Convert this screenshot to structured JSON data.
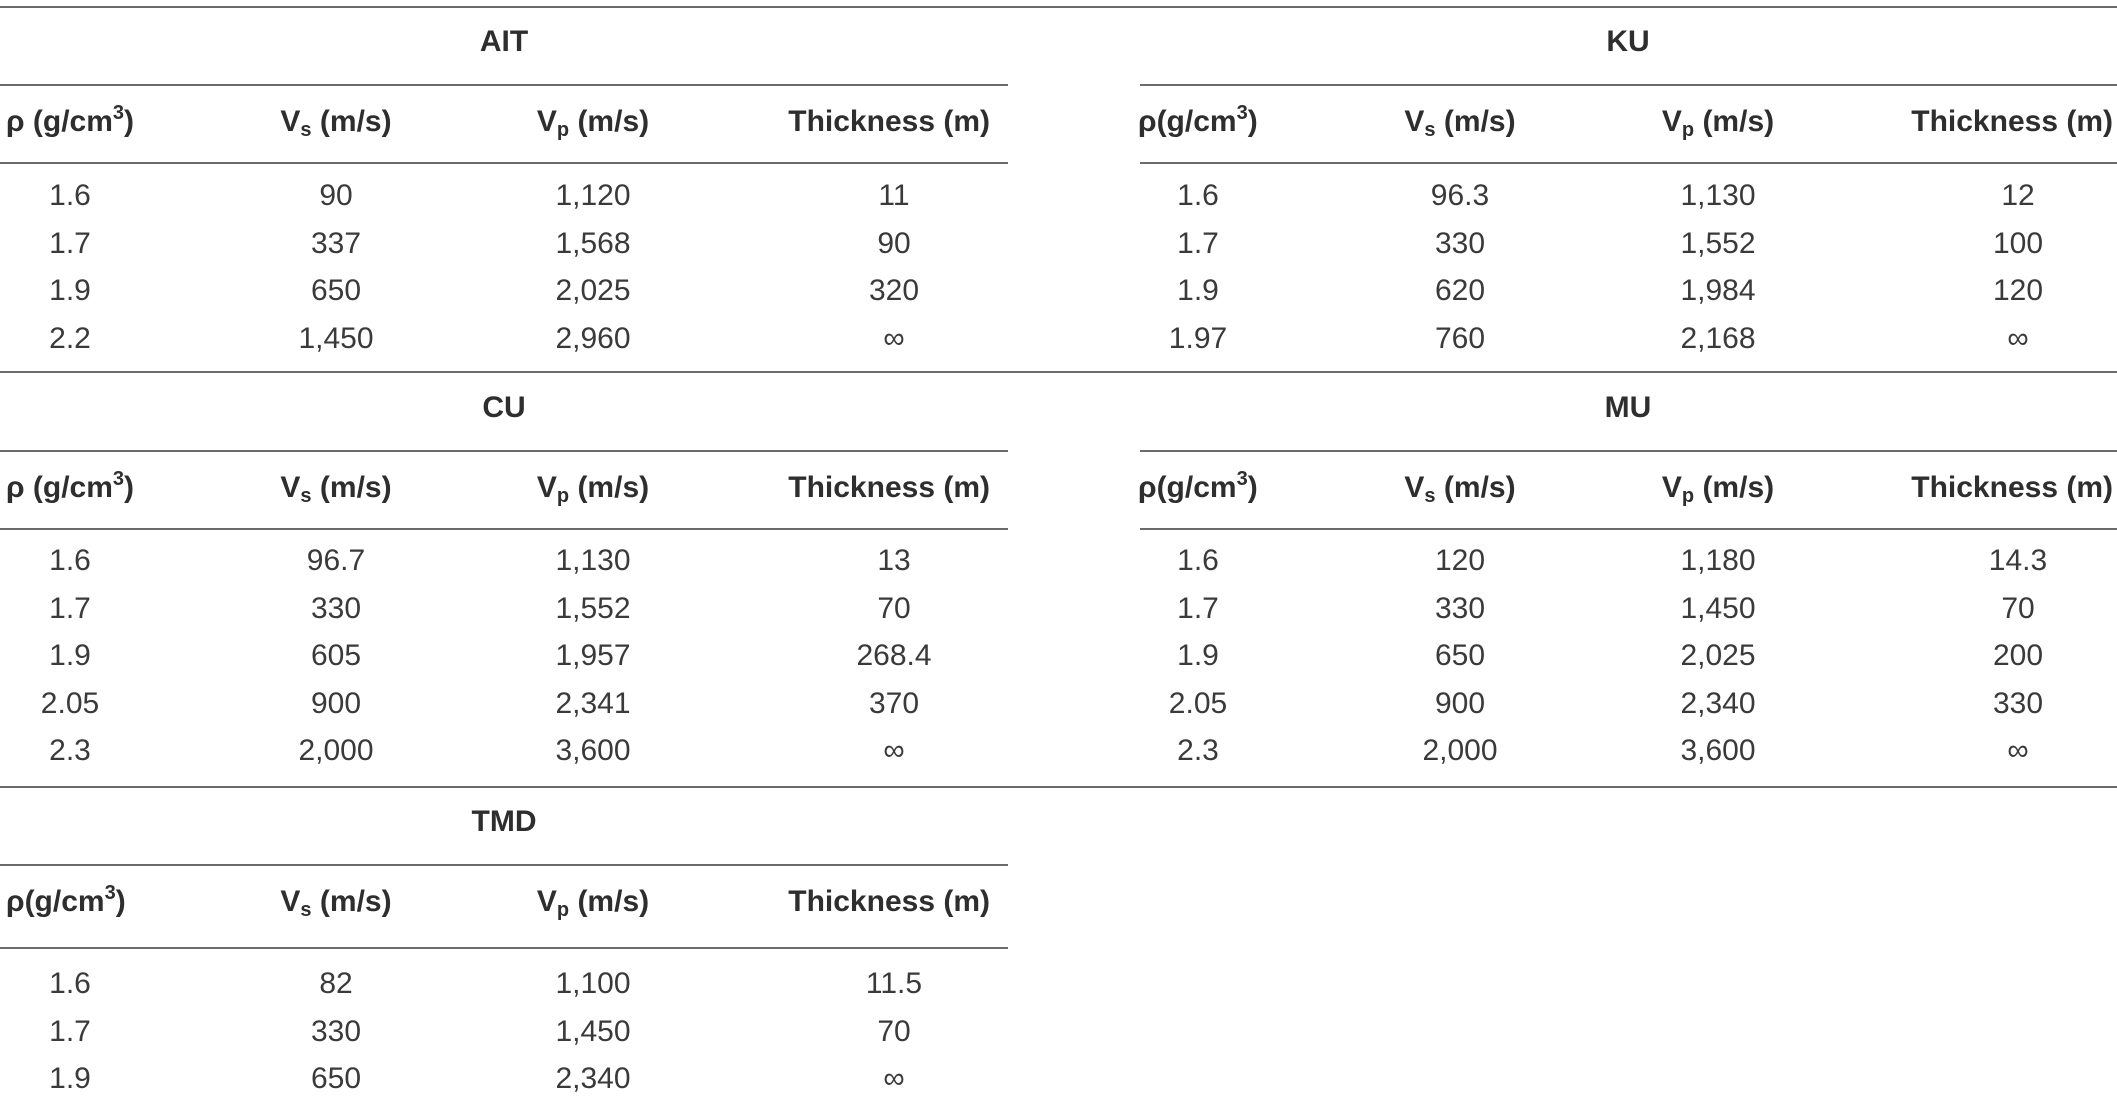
{
  "headers": {
    "rho_symbol": "ρ",
    "rho_unit_left": "(g/cm",
    "rho_exp": "3",
    "rho_unit_right": ")",
    "v": "V",
    "vs_sub": "s",
    "vp_sub": "p",
    "v_unit": "(m/s)",
    "thickness": "Thickness (m)"
  },
  "sections": [
    {
      "title": "AIT",
      "rows": [
        [
          "1.6",
          "90",
          "1,120",
          "11"
        ],
        [
          "1.7",
          "337",
          "1,568",
          "90"
        ],
        [
          "1.9",
          "650",
          "2,025",
          "320"
        ],
        [
          "2.2",
          "1,450",
          "2,960",
          "∞"
        ]
      ]
    },
    {
      "title": "KU",
      "rows": [
        [
          "1.6",
          "96.3",
          "1,130",
          "12"
        ],
        [
          "1.7",
          "330",
          "1,552",
          "100"
        ],
        [
          "1.9",
          "620",
          "1,984",
          "120"
        ],
        [
          "1.97",
          "760",
          "2,168",
          "∞"
        ]
      ]
    },
    {
      "title": "CU",
      "rows": [
        [
          "1.6",
          "96.7",
          "1,130",
          "13"
        ],
        [
          "1.7",
          "330",
          "1,552",
          "70"
        ],
        [
          "1.9",
          "605",
          "1,957",
          "268.4"
        ],
        [
          "2.05",
          "900",
          "2,341",
          "370"
        ],
        [
          "2.3",
          "2,000",
          "3,600",
          "∞"
        ]
      ]
    },
    {
      "title": "MU",
      "rows": [
        [
          "1.6",
          "120",
          "1,180",
          "14.3"
        ],
        [
          "1.7",
          "330",
          "1,450",
          "70"
        ],
        [
          "1.9",
          "650",
          "2,025",
          "200"
        ],
        [
          "2.05",
          "900",
          "2,340",
          "330"
        ],
        [
          "2.3",
          "2,000",
          "3,600",
          "∞"
        ]
      ]
    },
    {
      "title": "TMD",
      "rows": [
        [
          "1.6",
          "82",
          "1,100",
          "11.5"
        ],
        [
          "1.7",
          "330",
          "1,450",
          "70"
        ],
        [
          "1.9",
          "650",
          "2,340",
          "∞"
        ]
      ]
    }
  ]
}
